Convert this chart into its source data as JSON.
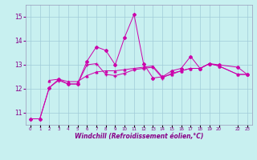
{
  "xlabel": "Windchill (Refroidissement éolien,°C)",
  "background_color": "#c8f0f0",
  "grid_color": "#a0ccd8",
  "line_color": "#cc00aa",
  "x_ticks": [
    0,
    1,
    2,
    3,
    4,
    5,
    6,
    7,
    8,
    9,
    10,
    11,
    12,
    13,
    14,
    15,
    16,
    17,
    18,
    19,
    20,
    22,
    23
  ],
  "x_tick_labels": [
    "0",
    "1",
    "2",
    "3",
    "4",
    "5",
    "6",
    "7",
    "8",
    "9",
    "10",
    "11",
    "12",
    "13",
    "14",
    "15",
    "16",
    "17",
    "18",
    "19",
    "20",
    "22",
    "23"
  ],
  "ylim": [
    10.5,
    15.5
  ],
  "xlim": [
    -0.5,
    23.5
  ],
  "yticks": [
    11,
    12,
    13,
    14,
    15
  ],
  "series1_x": [
    0,
    1,
    2,
    3,
    4,
    5,
    6,
    7,
    8,
    9,
    10,
    11,
    12,
    13,
    14,
    15,
    16,
    17,
    18,
    19,
    20,
    22,
    23
  ],
  "series1_y": [
    10.75,
    10.75,
    12.05,
    12.4,
    12.2,
    12.2,
    13.15,
    13.75,
    13.6,
    13.0,
    14.15,
    15.1,
    13.05,
    12.45,
    12.5,
    12.75,
    12.85,
    13.35,
    12.85,
    13.05,
    13.0,
    12.9,
    12.6
  ],
  "series2_x": [
    0,
    1,
    2,
    3,
    4,
    5,
    6,
    7,
    8,
    9,
    10,
    11,
    12,
    13,
    14,
    15,
    16,
    17,
    18,
    19,
    20,
    22,
    23
  ],
  "series2_y": [
    10.75,
    10.75,
    12.05,
    12.35,
    12.2,
    12.2,
    13.0,
    13.05,
    12.6,
    12.55,
    12.65,
    12.8,
    12.85,
    12.9,
    12.45,
    12.65,
    12.75,
    12.85,
    12.85,
    13.05,
    12.95,
    12.6,
    12.6
  ],
  "series3_x": [
    2,
    3,
    4,
    5,
    6,
    7,
    8,
    9,
    10,
    11,
    12,
    13,
    14,
    15,
    16,
    17,
    18,
    19,
    20,
    22,
    23
  ],
  "series3_y": [
    12.35,
    12.4,
    12.3,
    12.3,
    12.55,
    12.7,
    12.75,
    12.75,
    12.8,
    12.85,
    12.9,
    12.95,
    12.5,
    12.6,
    12.75,
    12.85,
    12.85,
    13.05,
    12.95,
    12.6,
    12.6
  ]
}
